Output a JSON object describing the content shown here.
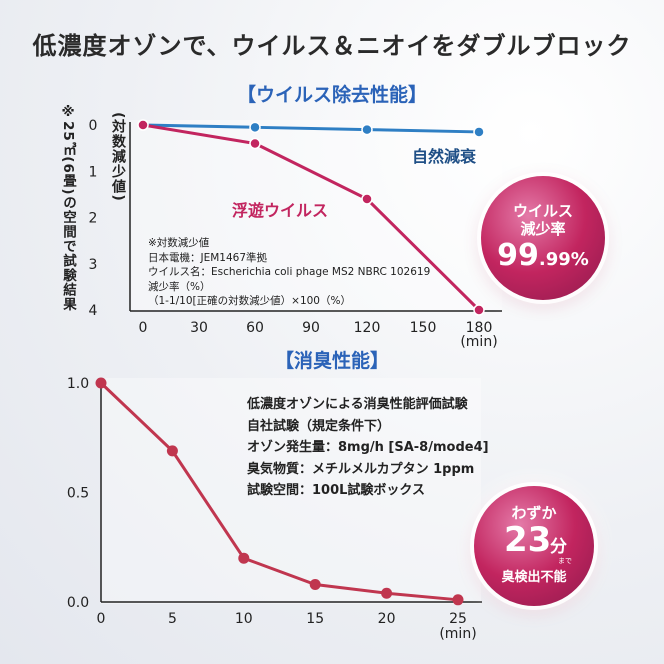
{
  "title": "低濃度オゾンで、ウイルス＆ニオイをダブルブロック",
  "section1_title": "【ウイルス除去性能】",
  "section2_title": "【消臭性能】",
  "chart1_left_note": "※25㎥(6畳)の空間で試験結果",
  "chart1_ylabel": "(対数減少値)",
  "chart1_note": [
    "※対数減少値",
    "日本電機：JEM1467準拠",
    "ウイルス名：Escherichia coli phage MS2 NBRC 102619",
    "減少率（%）",
    "（1-1/10[正確の対数減少値）×100（%）"
  ],
  "badge1": {
    "line1": "ウイルス",
    "line2": "減少率",
    "value": "99",
    "decimal": ".99",
    "unit": "%"
  },
  "chart2_conditions": [
    "低濃度オゾンによる消臭性能評価試験",
    "自社試験（規定条件下）",
    "オゾン発生量：8mg/h [SA-8/mode4]",
    "臭気物質：メチルメルカプタン 1ppm",
    "試験空間：100L試験ボックス"
  ],
  "badge2": {
    "line1": "わずか",
    "value": "23",
    "unit": "分",
    "made": "まで",
    "line3": "臭検出不能"
  },
  "colors": {
    "natural": "#2f7fc4",
    "floating": "#c2255f",
    "odor": "#c0364f",
    "accent": "#2b63b8"
  },
  "chart_data": [
    {
      "type": "line",
      "xlabel": "(min)",
      "ylabel": "(対数減少値)",
      "x": [
        0,
        60,
        120,
        180
      ],
      "x_ticks": [
        "0",
        "30",
        "60",
        "90",
        "120",
        "150",
        "180"
      ],
      "y_ticks": [
        "0",
        "1",
        "2",
        "3",
        "4"
      ],
      "xlim": [
        0,
        180
      ],
      "ylim": [
        0,
        4
      ],
      "y_inverted": true,
      "series": [
        {
          "name": "自然減衰",
          "x": [
            0,
            60,
            120,
            180
          ],
          "values": [
            0,
            0.05,
            0.1,
            0.15
          ]
        },
        {
          "name": "浮遊ウイルス",
          "x": [
            0,
            60,
            120,
            180
          ],
          "values": [
            0,
            0.4,
            1.6,
            4.0
          ]
        }
      ]
    },
    {
      "type": "line",
      "xlabel": "(min)",
      "ylabel": "",
      "x_ticks": [
        "0",
        "5",
        "10",
        "15",
        "20",
        "25"
      ],
      "y_ticks": [
        "1.0",
        "0.5",
        "0.0"
      ],
      "xlim": [
        0,
        25
      ],
      "ylim": [
        0,
        1.0
      ],
      "series": [
        {
          "x": [
            0,
            5,
            10,
            15,
            20,
            25
          ],
          "values": [
            1.0,
            0.69,
            0.2,
            0.08,
            0.04,
            0.01
          ]
        }
      ]
    }
  ]
}
